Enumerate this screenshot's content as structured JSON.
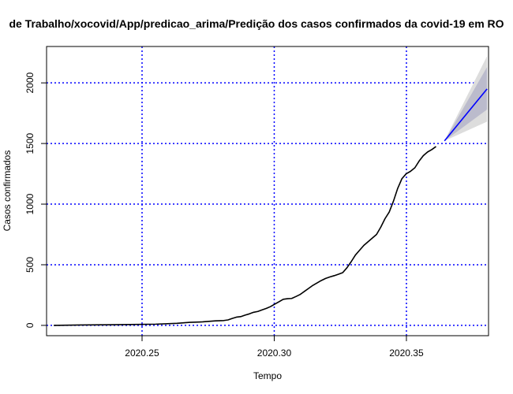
{
  "chart_data": {
    "type": "line",
    "title": "de Trabalho/xocovid/App/predicao_arima/Predição dos casos confirmados da covid-19 em RO",
    "xlabel": "Tempo",
    "ylabel": "Casos confirmados",
    "xlim": [
      0.21388,
      0.38106
    ],
    "ylim": [
      -85,
      2300
    ],
    "x_ticks": [
      0.25,
      0.3,
      0.35
    ],
    "x_tick_labels": [
      "2020.25",
      "2020.30",
      "2020.35"
    ],
    "y_ticks": [
      0,
      500,
      1000,
      1500,
      2000
    ],
    "y_tick_labels": [
      "0",
      "500",
      "1000",
      "1500",
      "2000"
    ],
    "grid": true,
    "grid_color": "#0000ff",
    "series": [
      {
        "color": "#000000",
        "x": [
          0.2166,
          0.2262,
          0.2358,
          0.2455,
          0.2552,
          0.2632,
          0.268,
          0.2729,
          0.2777,
          0.2809,
          0.2825,
          0.2841,
          0.2857,
          0.2873,
          0.289,
          0.2906,
          0.2922,
          0.2938,
          0.2954,
          0.297,
          0.2986,
          0.3002,
          0.3018,
          0.3034,
          0.305,
          0.3066,
          0.3082,
          0.3098,
          0.3114,
          0.313,
          0.3146,
          0.3162,
          0.3178,
          0.3194,
          0.3211,
          0.3227,
          0.3243,
          0.3259,
          0.3275,
          0.3291,
          0.3307,
          0.3323,
          0.3339,
          0.3355,
          0.3371,
          0.3387,
          0.3403,
          0.3419,
          0.3435,
          0.3451,
          0.3467,
          0.3483,
          0.3499,
          0.3515,
          0.3532,
          0.3548,
          0.3564,
          0.358,
          0.3596,
          0.3612
        ],
        "y": [
          0,
          3,
          5,
          7,
          10,
          17,
          25,
          29,
          37,
          40,
          45,
          57,
          68,
          72,
          85,
          95,
          108,
          115,
          128,
          140,
          155,
          175,
          195,
          215,
          220,
          222,
          238,
          255,
          280,
          305,
          330,
          350,
          370,
          387,
          400,
          410,
          422,
          435,
          475,
          525,
          580,
          620,
          660,
          690,
          720,
          750,
          810,
          880,
          935,
          1025,
          1130,
          1210,
          1250,
          1270,
          1300,
          1355,
          1400,
          1430,
          1450,
          1475
        ]
      },
      {
        "color": "#0000ff",
        "x": [
          0.3644,
          0.3805
        ],
        "y": [
          1522,
          1950
        ]
      }
    ],
    "forecast_band_outer": {
      "color": "#dddddd",
      "x": [
        0.3644,
        0.3805
      ],
      "lower": [
        1522,
        1680
      ],
      "upper": [
        1522,
        2220
      ]
    },
    "forecast_band_inner": {
      "color": "#bbbbcc",
      "x": [
        0.3644,
        0.3805
      ],
      "lower": [
        1522,
        1780
      ],
      "upper": [
        1522,
        2130
      ]
    }
  }
}
